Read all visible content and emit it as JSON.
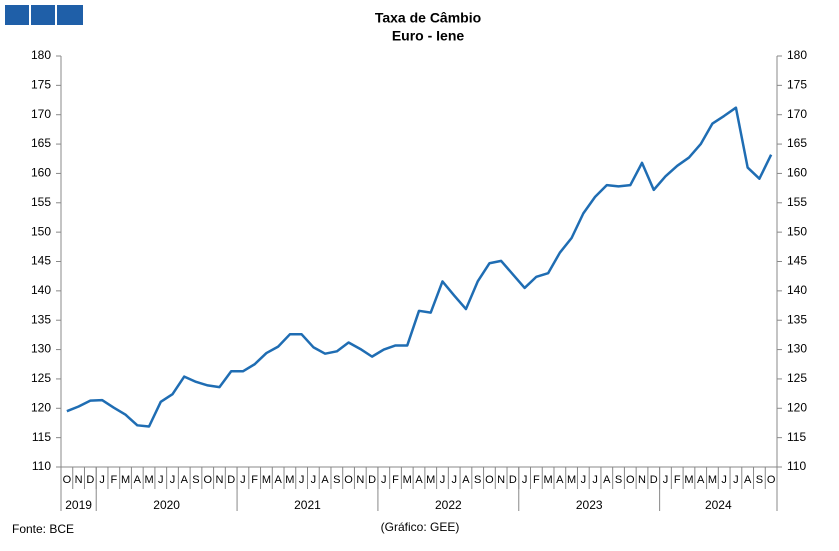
{
  "chart_data": {
    "type": "line",
    "title": "Taxa de Câmbio",
    "subtitle": "Euro - Iene",
    "categories": [
      "O",
      "N",
      "D",
      "J",
      "F",
      "M",
      "A",
      "M",
      "J",
      "J",
      "A",
      "S",
      "O",
      "N",
      "D",
      "J",
      "F",
      "M",
      "A",
      "M",
      "J",
      "J",
      "A",
      "S",
      "O",
      "N",
      "D",
      "J",
      "F",
      "M",
      "A",
      "M",
      "J",
      "J",
      "A",
      "S",
      "O",
      "N",
      "D",
      "J",
      "F",
      "M",
      "A",
      "M",
      "J",
      "J",
      "A",
      "S",
      "O",
      "N",
      "D",
      "J",
      "F",
      "M",
      "A",
      "M",
      "J",
      "J",
      "A",
      "S",
      "O"
    ],
    "years": [
      "2019",
      "2020",
      "2021",
      "2022",
      "2023",
      "2024"
    ],
    "series": [
      {
        "color": "#1f6db3",
        "values": [
          119.5,
          120.3,
          121.3,
          121.4,
          120.1,
          118.9,
          117.1,
          116.9,
          121.1,
          122.4,
          125.4,
          124.5,
          123.9,
          123.6,
          126.3,
          126.3,
          127.5,
          129.4,
          130.5,
          132.6,
          132.6,
          130.4,
          129.3,
          129.7,
          131.2,
          130.1,
          128.8,
          130.0,
          130.7,
          130.7,
          136.6,
          136.3,
          141.6,
          139.2,
          136.9,
          141.6,
          144.7,
          145.1,
          142.8,
          140.5,
          142.4,
          143.0,
          146.5,
          149.0,
          153.2,
          156.0,
          158.0,
          157.8,
          158.0,
          161.8,
          157.2,
          159.5,
          161.3,
          162.7,
          165.0,
          168.5,
          169.8,
          171.2,
          161.0,
          159.1,
          163.2
        ]
      }
    ],
    "ylim": [
      110,
      180
    ],
    "yticks": [
      110,
      115,
      120,
      125,
      130,
      135,
      140,
      145,
      150,
      155,
      160,
      165,
      170,
      175,
      180
    ],
    "source": "Fonte: BCE",
    "credit": "(Gráfico: GEE)"
  }
}
